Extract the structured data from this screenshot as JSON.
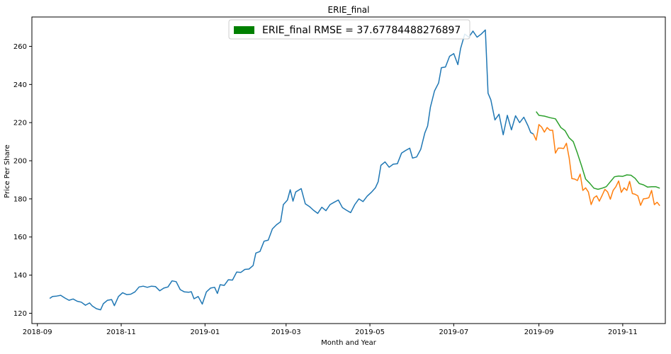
{
  "chart_data": {
    "type": "line",
    "title": "ERIE_final",
    "xlabel": "Month and Year",
    "ylabel": "Price Per Share",
    "legend": {
      "placement": "top-center",
      "label": "ERIE_final RMSE = 37.67784488276897",
      "color": "#008000"
    },
    "x_ticks": [
      "2018-09",
      "2018-11",
      "2019-01",
      "2019-03",
      "2019-05",
      "2019-07",
      "2019-09",
      "2019-11"
    ],
    "y_ticks": [
      120,
      140,
      160,
      180,
      200,
      220,
      240,
      260
    ],
    "xlim": [
      "2018-08-28",
      "2019-12-02"
    ],
    "ylim": [
      114.6,
      275.4
    ],
    "grid": false,
    "colors": {
      "train": "#1f77b4",
      "actual": "#ff7f0e",
      "predicted": "#2ca02c"
    },
    "series": [
      {
        "points": [
          [
            "2018-09-10",
            127.8
          ],
          [
            "2018-09-12",
            128.8
          ],
          [
            "2018-09-15",
            129.0
          ],
          [
            "2018-09-18",
            129.4
          ],
          [
            "2018-09-21",
            128.0
          ],
          [
            "2018-09-24",
            126.8
          ],
          [
            "2018-09-27",
            127.5
          ],
          [
            "2018-09-30",
            126.3
          ],
          [
            "2018-10-03",
            125.8
          ],
          [
            "2018-10-06",
            124.2
          ],
          [
            "2018-10-09",
            125.4
          ],
          [
            "2018-10-11",
            123.8
          ],
          [
            "2018-10-14",
            122.4
          ],
          [
            "2018-10-17",
            121.8
          ],
          [
            "2018-10-19",
            125.0
          ],
          [
            "2018-10-22",
            126.8
          ],
          [
            "2018-10-25",
            127.2
          ],
          [
            "2018-10-27",
            124.0
          ],
          [
            "2018-10-30",
            128.8
          ],
          [
            "2018-11-02",
            130.8
          ],
          [
            "2018-11-05",
            129.8
          ],
          [
            "2018-11-08",
            130.0
          ],
          [
            "2018-11-11",
            131.2
          ],
          [
            "2018-11-14",
            133.8
          ],
          [
            "2018-11-17",
            134.2
          ],
          [
            "2018-11-20",
            133.6
          ],
          [
            "2018-11-23",
            134.2
          ],
          [
            "2018-11-26",
            134.0
          ],
          [
            "2018-11-29",
            131.8
          ],
          [
            "2018-12-02",
            133.2
          ],
          [
            "2018-12-05",
            133.8
          ],
          [
            "2018-12-08",
            137.0
          ],
          [
            "2018-12-11",
            136.6
          ],
          [
            "2018-12-14",
            132.4
          ],
          [
            "2018-12-17",
            131.2
          ],
          [
            "2018-12-20",
            131.0
          ],
          [
            "2018-12-22",
            131.3
          ],
          [
            "2018-12-24",
            127.6
          ],
          [
            "2018-12-27",
            128.8
          ],
          [
            "2018-12-30",
            124.8
          ],
          [
            "2019-01-02",
            131.2
          ],
          [
            "2019-01-05",
            133.2
          ],
          [
            "2019-01-08",
            133.6
          ],
          [
            "2019-01-10",
            130.4
          ],
          [
            "2019-01-12",
            135.0
          ],
          [
            "2019-01-15",
            134.6
          ],
          [
            "2019-01-18",
            137.6
          ],
          [
            "2019-01-21",
            137.4
          ],
          [
            "2019-01-24",
            141.6
          ],
          [
            "2019-01-27",
            141.4
          ],
          [
            "2019-01-30",
            143.0
          ],
          [
            "2019-02-02",
            143.2
          ],
          [
            "2019-02-05",
            145.0
          ],
          [
            "2019-02-07",
            151.6
          ],
          [
            "2019-02-10",
            152.4
          ],
          [
            "2019-02-13",
            157.8
          ],
          [
            "2019-02-16",
            158.4
          ],
          [
            "2019-02-19",
            164.2
          ],
          [
            "2019-02-22",
            166.4
          ],
          [
            "2019-02-25",
            168.0
          ],
          [
            "2019-02-27",
            177.0
          ],
          [
            "2019-03-02",
            179.4
          ],
          [
            "2019-03-04",
            184.8
          ],
          [
            "2019-03-06",
            178.8
          ],
          [
            "2019-03-08",
            183.6
          ],
          [
            "2019-03-12",
            185.4
          ],
          [
            "2019-03-15",
            177.4
          ],
          [
            "2019-03-18",
            176.0
          ],
          [
            "2019-03-21",
            174.0
          ],
          [
            "2019-03-24",
            172.4
          ],
          [
            "2019-03-27",
            175.6
          ],
          [
            "2019-03-30",
            173.8
          ],
          [
            "2019-04-02",
            177.0
          ],
          [
            "2019-04-05",
            178.2
          ],
          [
            "2019-04-08",
            179.4
          ],
          [
            "2019-04-11",
            175.4
          ],
          [
            "2019-04-14",
            174.0
          ],
          [
            "2019-04-17",
            172.8
          ],
          [
            "2019-04-20",
            177.0
          ],
          [
            "2019-04-23",
            180.0
          ],
          [
            "2019-04-26",
            178.6
          ],
          [
            "2019-04-29",
            181.4
          ],
          [
            "2019-05-02",
            183.4
          ],
          [
            "2019-05-05",
            185.8
          ],
          [
            "2019-05-07",
            189.0
          ],
          [
            "2019-05-09",
            197.6
          ],
          [
            "2019-05-12",
            199.4
          ],
          [
            "2019-05-15",
            196.6
          ],
          [
            "2019-05-18",
            198.2
          ],
          [
            "2019-05-21",
            198.4
          ],
          [
            "2019-05-24",
            204.0
          ],
          [
            "2019-05-27",
            205.4
          ],
          [
            "2019-05-30",
            206.6
          ],
          [
            "2019-06-01",
            201.4
          ],
          [
            "2019-06-04",
            202.0
          ],
          [
            "2019-06-07",
            206.0
          ],
          [
            "2019-06-10",
            214.6
          ],
          [
            "2019-06-12",
            218.2
          ],
          [
            "2019-06-14",
            228.0
          ],
          [
            "2019-06-17",
            236.6
          ],
          [
            "2019-06-20",
            240.8
          ],
          [
            "2019-06-22",
            248.8
          ],
          [
            "2019-06-25",
            249.2
          ],
          [
            "2019-06-28",
            254.8
          ],
          [
            "2019-07-01",
            256.2
          ],
          [
            "2019-07-04",
            250.4
          ],
          [
            "2019-07-06",
            258.8
          ],
          [
            "2019-07-09",
            266.4
          ],
          [
            "2019-07-12",
            264.8
          ],
          [
            "2019-07-15",
            268.0
          ],
          [
            "2019-07-18",
            264.8
          ],
          [
            "2019-07-21",
            266.4
          ],
          [
            "2019-07-24",
            268.6
          ],
          [
            "2019-07-26",
            235.4
          ],
          [
            "2019-07-28",
            232.0
          ],
          [
            "2019-07-31",
            221.4
          ],
          [
            "2019-08-03",
            224.4
          ],
          [
            "2019-08-06",
            213.6
          ],
          [
            "2019-08-09",
            223.8
          ],
          [
            "2019-08-12",
            216.2
          ],
          [
            "2019-08-15",
            223.6
          ],
          [
            "2019-08-18",
            220.0
          ],
          [
            "2019-08-21",
            222.8
          ],
          [
            "2019-08-24",
            218.4
          ],
          [
            "2019-08-26",
            214.8
          ],
          [
            "2019-08-28",
            214.0
          ]
        ]
      },
      {
        "points": [
          [
            "2019-08-28",
            214.0
          ],
          [
            "2019-08-30",
            210.8
          ],
          [
            "2019-09-01",
            219.0
          ],
          [
            "2019-09-03",
            217.6
          ],
          [
            "2019-09-05",
            215.0
          ],
          [
            "2019-09-07",
            217.4
          ],
          [
            "2019-09-09",
            216.0
          ],
          [
            "2019-09-11",
            216.0
          ],
          [
            "2019-09-13",
            204.0
          ],
          [
            "2019-09-15",
            206.6
          ],
          [
            "2019-09-17",
            206.6
          ],
          [
            "2019-09-19",
            206.4
          ],
          [
            "2019-09-21",
            209.2
          ],
          [
            "2019-09-23",
            201.4
          ],
          [
            "2019-09-25",
            190.6
          ],
          [
            "2019-09-27",
            190.4
          ],
          [
            "2019-09-29",
            189.6
          ],
          [
            "2019-10-01",
            193.0
          ],
          [
            "2019-10-03",
            184.4
          ],
          [
            "2019-10-05",
            185.8
          ],
          [
            "2019-10-07",
            183.6
          ],
          [
            "2019-10-09",
            177.0
          ],
          [
            "2019-10-11",
            180.6
          ],
          [
            "2019-10-13",
            181.6
          ],
          [
            "2019-10-15",
            178.8
          ],
          [
            "2019-10-17",
            181.8
          ],
          [
            "2019-10-19",
            185.0
          ],
          [
            "2019-10-21",
            183.6
          ],
          [
            "2019-10-23",
            179.8
          ],
          [
            "2019-10-25",
            184.4
          ],
          [
            "2019-10-27",
            186.4
          ],
          [
            "2019-10-29",
            189.4
          ],
          [
            "2019-10-31",
            183.4
          ],
          [
            "2019-11-02",
            185.8
          ],
          [
            "2019-11-04",
            184.4
          ],
          [
            "2019-11-06",
            189.2
          ],
          [
            "2019-11-08",
            182.8
          ],
          [
            "2019-11-10",
            182.4
          ],
          [
            "2019-11-12",
            181.6
          ],
          [
            "2019-11-14",
            176.6
          ],
          [
            "2019-11-16",
            180.0
          ],
          [
            "2019-11-18",
            180.2
          ],
          [
            "2019-11-20",
            180.6
          ],
          [
            "2019-11-22",
            184.4
          ],
          [
            "2019-11-24",
            177.0
          ],
          [
            "2019-11-26",
            178.2
          ],
          [
            "2019-11-28",
            176.4
          ]
        ]
      },
      {
        "points": [
          [
            "2019-08-30",
            225.8
          ],
          [
            "2019-09-01",
            223.8
          ],
          [
            "2019-09-05",
            223.4
          ],
          [
            "2019-09-09",
            222.6
          ],
          [
            "2019-09-13",
            222.0
          ],
          [
            "2019-09-17",
            217.4
          ],
          [
            "2019-09-20",
            215.8
          ],
          [
            "2019-09-23",
            212.0
          ],
          [
            "2019-09-26",
            210.0
          ],
          [
            "2019-09-29",
            204.0
          ],
          [
            "2019-10-02",
            197.4
          ],
          [
            "2019-10-05",
            190.4
          ],
          [
            "2019-10-08",
            188.2
          ],
          [
            "2019-10-11",
            185.6
          ],
          [
            "2019-10-14",
            185.0
          ],
          [
            "2019-10-17",
            185.6
          ],
          [
            "2019-10-20",
            186.4
          ],
          [
            "2019-10-23",
            189.0
          ],
          [
            "2019-10-26",
            191.6
          ],
          [
            "2019-10-29",
            192.0
          ],
          [
            "2019-11-01",
            191.8
          ],
          [
            "2019-11-04",
            192.6
          ],
          [
            "2019-11-07",
            192.4
          ],
          [
            "2019-11-10",
            190.8
          ],
          [
            "2019-11-13",
            188.0
          ],
          [
            "2019-11-16",
            187.4
          ],
          [
            "2019-11-19",
            186.2
          ],
          [
            "2019-11-22",
            186.4
          ],
          [
            "2019-11-25",
            186.4
          ],
          [
            "2019-11-28",
            185.6
          ]
        ]
      }
    ]
  }
}
